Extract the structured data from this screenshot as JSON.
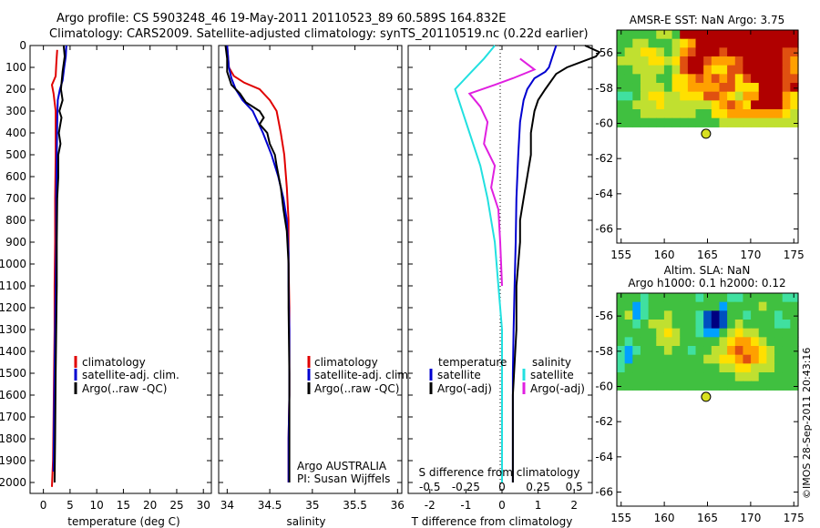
{
  "header": {
    "line1": "Argo profile: CS 5903248_46 19-May-2011 20110523_89 60.589S 164.832E",
    "line2": "Climatology: CARS2009. Satellite-adjusted climatology: synTS_20110519.nc (0.22d earlier)"
  },
  "colors": {
    "climatology": "#e00000",
    "satellite": "#0000d0",
    "argo": "#000000",
    "sal_satellite": "#22e0e0",
    "sal_argo": "#e020e0",
    "marker": "#d8e020"
  },
  "stamp": "©IMOS 28-Sep-2011 20:43:16",
  "chart_data": [
    {
      "type": "line",
      "xlabel": "temperature (deg C)",
      "xticks": [
        "0",
        "5",
        "10",
        "15",
        "20",
        "25",
        "30"
      ],
      "xlim": [
        -2.5,
        31.5
      ],
      "ylim": [
        2050,
        0
      ],
      "yticks": [
        "0",
        "100",
        "200",
        "300",
        "400",
        "500",
        "600",
        "700",
        "800",
        "900",
        "1000",
        "1100",
        "1200",
        "1300",
        "1400",
        "1500",
        "1600",
        "1700",
        "1800",
        "1900",
        "2000"
      ],
      "legend": [
        "climatology",
        "satellite-adj. clim.",
        "Argo(..raw -QC)"
      ],
      "series": [
        {
          "name": "climatology",
          "color": "#e00000",
          "x": [
            2.6,
            2.5,
            2.4,
            2.3,
            1.6,
            1.9,
            2.3,
            2.3,
            2.2,
            2.2,
            2.1,
            2.1,
            2.0,
            1.9,
            1.8,
            1.6
          ],
          "y": [
            20,
            50,
            90,
            140,
            180,
            220,
            300,
            500,
            700,
            900,
            1100,
            1300,
            1500,
            1700,
            1900,
            2020
          ]
        },
        {
          "name": "satellite-adj. clim.",
          "color": "#0000d0",
          "x": [
            4.3,
            4.2,
            3.9,
            3.6,
            3.1,
            2.7,
            2.6,
            2.5,
            2.4,
            2.4,
            2.3,
            2.2,
            2.1,
            2.0,
            1.9
          ],
          "y": [
            0,
            50,
            100,
            160,
            200,
            250,
            350,
            500,
            700,
            900,
            1100,
            1300,
            1500,
            1700,
            1950
          ]
        },
        {
          "name": "Argo(..raw -QC)",
          "color": "#000000",
          "x": [
            3.8,
            4.0,
            3.6,
            3.3,
            3.6,
            3.0,
            3.4,
            2.9,
            3.2,
            2.8,
            2.8,
            2.6,
            2.5,
            2.5,
            2.4,
            2.3,
            2.2,
            2.1
          ],
          "y": [
            0,
            50,
            120,
            200,
            250,
            300,
            330,
            400,
            450,
            500,
            600,
            700,
            900,
            1100,
            1300,
            1500,
            1800,
            2000
          ]
        }
      ]
    },
    {
      "type": "line",
      "xlabel": "salinity",
      "xticks": [
        "34",
        "34.5",
        "35",
        "35.5",
        "36"
      ],
      "xlim": [
        33.9,
        36.05
      ],
      "ylim": [
        2050,
        0
      ],
      "legend": [
        "climatology",
        "satellite-adj. clim.",
        "Argo(..raw -QC)"
      ],
      "annotation": [
        "Argo AUSTRALIA",
        "PI: Susan Wijffels"
      ],
      "series": [
        {
          "name": "climatology",
          "color": "#e00000",
          "x": [
            34.0,
            34.02,
            34.08,
            34.2,
            34.38,
            34.5,
            34.58,
            34.63,
            34.67,
            34.7,
            34.72,
            34.72,
            34.73,
            34.73,
            34.73,
            34.72,
            34.72
          ],
          "y": [
            0,
            100,
            140,
            170,
            200,
            250,
            300,
            400,
            500,
            650,
            800,
            1000,
            1200,
            1400,
            1600,
            1800,
            2000
          ]
        },
        {
          "name": "satellite-adj. clim.",
          "color": "#0000d0",
          "x": [
            34.0,
            34.02,
            34.05,
            34.1,
            34.18,
            34.3,
            34.42,
            34.52,
            34.6,
            34.66,
            34.7,
            34.72,
            34.72,
            34.73,
            34.73,
            34.72,
            34.72
          ],
          "y": [
            0,
            100,
            150,
            200,
            250,
            300,
            400,
            500,
            600,
            700,
            800,
            950,
            1100,
            1300,
            1600,
            1800,
            2000
          ]
        },
        {
          "name": "Argo(..raw -QC)",
          "color": "#000000",
          "x": [
            33.98,
            34.0,
            34.0,
            34.05,
            34.15,
            34.22,
            34.38,
            34.43,
            34.38,
            34.47,
            34.5,
            34.56,
            34.58,
            34.63,
            34.66,
            34.7,
            34.72,
            34.72,
            34.73,
            34.73
          ],
          "y": [
            0,
            60,
            120,
            180,
            220,
            260,
            300,
            330,
            360,
            400,
            450,
            500,
            550,
            650,
            750,
            850,
            1000,
            1200,
            1500,
            2000
          ]
        }
      ]
    },
    {
      "type": "line",
      "xlabel": "T difference from climatology",
      "xticks": [
        "-2",
        "-1",
        "0",
        "1",
        "2"
      ],
      "xlim": [
        -2.6,
        2.5
      ],
      "x2label": "S difference from climatology",
      "x2ticks": [
        "-0.5",
        "-0.25",
        "0",
        "0.25",
        "0.5"
      ],
      "ylim": [
        2050,
        0
      ],
      "legend_left_title": "temperature",
      "legend_right_title": "salinity",
      "legend_left": [
        "satellite",
        "Argo(-adj)"
      ],
      "legend_right": [
        "satellite",
        "Argo(-adj)"
      ],
      "series": [
        {
          "name": "temperature satellite",
          "color": "#0000d0",
          "x": [
            1.5,
            1.4,
            1.3,
            1.2,
            0.9,
            0.7,
            0.6,
            0.5,
            0.45,
            0.4,
            0.38,
            0.35,
            0.32,
            0.3,
            0.3,
            0.3,
            0.3,
            0.3
          ],
          "y": [
            0,
            50,
            100,
            120,
            150,
            200,
            250,
            350,
            500,
            700,
            900,
            1100,
            1300,
            1500,
            1600,
            1800,
            1900,
            2000
          ]
        },
        {
          "name": "temperature Argo(-adj)",
          "color": "#000000",
          "x": [
            2.3,
            2.7,
            2.6,
            1.8,
            1.5,
            1.2,
            1.0,
            0.9,
            0.8,
            0.8,
            0.7,
            0.6,
            0.5,
            0.5,
            0.4,
            0.4,
            0.3,
            0.3,
            0.3
          ],
          "y": [
            0,
            30,
            50,
            100,
            130,
            200,
            250,
            300,
            400,
            500,
            600,
            700,
            800,
            900,
            1100,
            1300,
            1600,
            1800,
            2000
          ]
        },
        {
          "name": "salinity satellite",
          "color": "#22e0e0",
          "x": [
            -0.2,
            -0.5,
            -0.9,
            -1.3,
            -1.2,
            -1.0,
            -0.8,
            -0.6,
            -0.4,
            -0.2,
            -0.1,
            0.0,
            0.0,
            0.0,
            0.0
          ],
          "y": [
            0,
            60,
            130,
            200,
            250,
            350,
            450,
            550,
            700,
            900,
            1100,
            1300,
            1500,
            1700,
            2000
          ]
        },
        {
          "name": "salinity Argo(-adj)",
          "color": "#e020e0",
          "x": [
            0.5,
            0.9,
            0.3,
            -0.2,
            -0.9,
            -0.6,
            -0.4,
            -0.5,
            -0.2,
            -0.3,
            -0.1,
            -0.05,
            0.0
          ],
          "y": [
            60,
            110,
            150,
            180,
            220,
            280,
            350,
            450,
            550,
            650,
            750,
            900,
            1100
          ]
        }
      ]
    },
    {
      "type": "heatmap",
      "title": "AMSR-E SST: NaN  Argo: 3.75",
      "xticks": [
        "155",
        "160",
        "165",
        "170",
        "175"
      ],
      "xlim": [
        154.5,
        175.5
      ],
      "yticks": [
        "-56",
        "-58",
        "-60",
        "-62",
        "-64",
        "-66"
      ],
      "ylim": [
        -66.8,
        -54.7
      ],
      "data_extent_lat": [
        -60.2,
        -54.7
      ],
      "argo_position": {
        "lon": 164.832,
        "lat": -60.589
      },
      "palette": [
        "#00a0ff",
        "#40e0a0",
        "#40c040",
        "#c0e030",
        "#ffe000",
        "#ffa000",
        "#e05010",
        "#b00000"
      ],
      "grid": [
        [
          2,
          2,
          2,
          2,
          2,
          3,
          3,
          2,
          7,
          7,
          7,
          7,
          7,
          7,
          7,
          7,
          7,
          7,
          7,
          7,
          7,
          7,
          7
        ],
        [
          2,
          2,
          3,
          3,
          2,
          2,
          2,
          3,
          4,
          5,
          7,
          7,
          7,
          7,
          7,
          7,
          7,
          7,
          7,
          7,
          7,
          7,
          7
        ],
        [
          2,
          3,
          3,
          4,
          4,
          3,
          2,
          3,
          5,
          6,
          7,
          7,
          7,
          6,
          7,
          7,
          7,
          7,
          7,
          7,
          7,
          6,
          6
        ],
        [
          3,
          3,
          3,
          3,
          4,
          4,
          3,
          4,
          6,
          7,
          7,
          6,
          5,
          5,
          5,
          6,
          7,
          7,
          7,
          7,
          7,
          6,
          5
        ],
        [
          2,
          2,
          3,
          3,
          3,
          3,
          2,
          3,
          6,
          7,
          7,
          5,
          4,
          4,
          6,
          6,
          7,
          7,
          7,
          7,
          7,
          6,
          5
        ],
        [
          2,
          2,
          2,
          3,
          3,
          2,
          2,
          4,
          4,
          5,
          6,
          5,
          6,
          5,
          6,
          4,
          6,
          7,
          7,
          7,
          7,
          6,
          6
        ],
        [
          2,
          2,
          2,
          3,
          3,
          3,
          2,
          4,
          4,
          5,
          5,
          5,
          5,
          6,
          6,
          4,
          4,
          4,
          7,
          7,
          7,
          6,
          7
        ],
        [
          1,
          1,
          2,
          3,
          4,
          4,
          3,
          3,
          4,
          4,
          4,
          6,
          6,
          5,
          4,
          3,
          5,
          5,
          7,
          7,
          7,
          5,
          4
        ],
        [
          2,
          2,
          3,
          3,
          3,
          4,
          3,
          3,
          3,
          3,
          3,
          3,
          4,
          5,
          6,
          5,
          4,
          7,
          7,
          7,
          7,
          5,
          4
        ],
        [
          2,
          2,
          2,
          3,
          3,
          3,
          3,
          3,
          3,
          3,
          2,
          2,
          4,
          4,
          5,
          5,
          5,
          5,
          5,
          5,
          5,
          4,
          3
        ],
        [
          2,
          2,
          2,
          2,
          2,
          2,
          2,
          2,
          2,
          2,
          2,
          2,
          2,
          3,
          3,
          3,
          3,
          3,
          3,
          3,
          3,
          3,
          3
        ]
      ]
    },
    {
      "type": "heatmap",
      "title": "Altim. SLA: NaN",
      "subtitle": "Argo h1000: 0.1  h2000: 0.12",
      "xticks": [
        "155",
        "160",
        "165",
        "170",
        "175"
      ],
      "xlim": [
        154.5,
        175.5
      ],
      "yticks": [
        "-56",
        "-58",
        "-60",
        "-62",
        "-64",
        "-66"
      ],
      "ylim": [
        -66.8,
        -54.7
      ],
      "data_extent_lat": [
        -60.2,
        -54.7
      ],
      "argo_position": {
        "lon": 164.832,
        "lat": -60.589
      },
      "palette": [
        "#000080",
        "#0050c0",
        "#00a0ff",
        "#40e0a0",
        "#40c040",
        "#c0e030",
        "#ffe000",
        "#ffa000",
        "#e05010"
      ],
      "grid": [
        [
          4,
          4,
          4,
          3,
          4,
          4,
          4,
          4,
          4,
          4,
          3,
          4,
          4,
          4,
          3,
          3,
          4,
          4,
          4,
          4,
          4,
          3,
          3
        ],
        [
          4,
          4,
          2,
          3,
          4,
          4,
          4,
          4,
          4,
          4,
          4,
          4,
          4,
          2,
          4,
          4,
          4,
          4,
          5,
          4,
          4,
          4,
          4
        ],
        [
          4,
          5,
          2,
          3,
          4,
          4,
          5,
          4,
          4,
          4,
          3,
          1,
          0,
          1,
          4,
          4,
          3,
          4,
          4,
          4,
          3,
          4,
          4
        ],
        [
          4,
          4,
          3,
          4,
          5,
          5,
          5,
          4,
          4,
          4,
          3,
          1,
          0,
          1,
          4,
          5,
          4,
          4,
          4,
          4,
          3,
          3,
          4
        ],
        [
          4,
          4,
          4,
          4,
          4,
          5,
          6,
          5,
          4,
          4,
          3,
          2,
          2,
          4,
          5,
          6,
          5,
          5,
          4,
          4,
          4,
          4,
          4
        ],
        [
          4,
          3,
          4,
          4,
          4,
          5,
          5,
          5,
          4,
          4,
          4,
          4,
          4,
          5,
          6,
          7,
          7,
          6,
          5,
          4,
          4,
          4,
          4
        ],
        [
          3,
          2,
          3,
          4,
          4,
          4,
          5,
          4,
          4,
          3,
          4,
          4,
          5,
          5,
          7,
          8,
          7,
          7,
          6,
          5,
          4,
          4,
          4
        ],
        [
          3,
          2,
          4,
          4,
          4,
          4,
          4,
          4,
          4,
          4,
          4,
          5,
          5,
          6,
          6,
          7,
          8,
          7,
          6,
          5,
          4,
          4,
          4
        ],
        [
          3,
          4,
          4,
          4,
          4,
          4,
          4,
          4,
          4,
          4,
          4,
          4,
          4,
          5,
          5,
          6,
          6,
          5,
          5,
          5,
          4,
          4,
          4
        ],
        [
          4,
          4,
          4,
          4,
          4,
          4,
          4,
          4,
          4,
          4,
          4,
          4,
          4,
          4,
          4,
          5,
          5,
          5,
          4,
          4,
          4,
          4,
          4
        ],
        [
          4,
          4,
          4,
          4,
          4,
          4,
          4,
          4,
          4,
          4,
          4,
          4,
          4,
          4,
          4,
          4,
          4,
          4,
          4,
          4,
          4,
          4,
          4
        ]
      ]
    }
  ]
}
